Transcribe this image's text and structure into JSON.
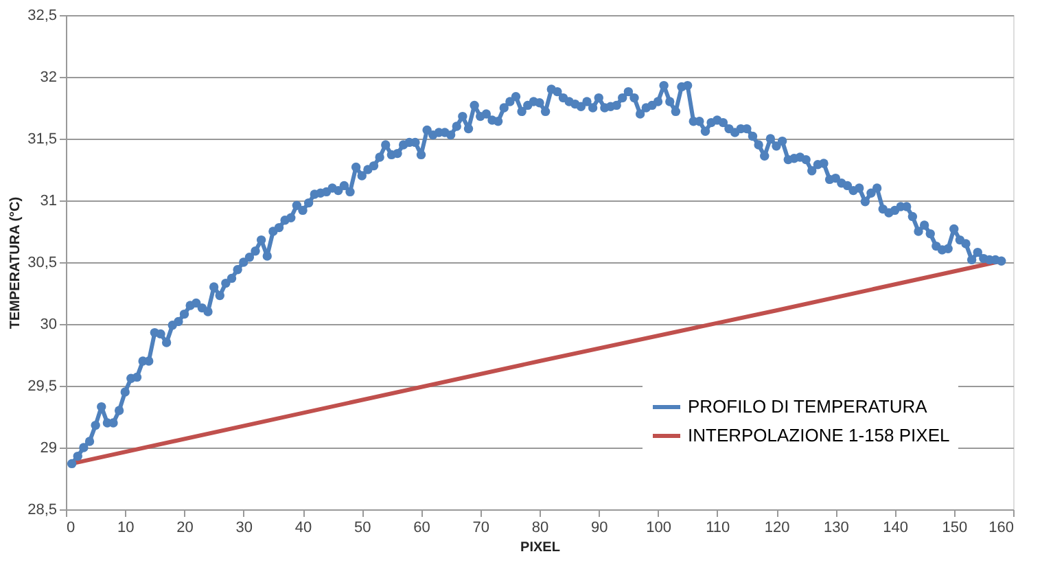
{
  "chart_data": {
    "type": "line",
    "xlabel": "PIXEL",
    "ylabel": "TEMPERATURA  (°C)",
    "xlim": [
      0,
      160
    ],
    "xticks": [
      0,
      10,
      20,
      30,
      40,
      50,
      60,
      70,
      80,
      90,
      100,
      110,
      120,
      130,
      140,
      150,
      160
    ],
    "ylim": [
      28.5,
      32.5
    ],
    "yticks": [
      {
        "value": 28.5,
        "label": "28,5"
      },
      29,
      {
        "value": 29.5,
        "label": "29,5"
      },
      30,
      {
        "value": 30.5,
        "label": "30,5"
      },
      31,
      {
        "value": 31.5,
        "label": "31,5"
      },
      32,
      {
        "value": 32.5,
        "label": "32,5"
      }
    ],
    "grid": "y",
    "legend": "bottom right",
    "line_style": "solid",
    "series": [
      {
        "name": "PROFILO DI TEMPERATURA",
        "color": "#4f81bd",
        "marker": "circle",
        "x": [
          1,
          2,
          3,
          4,
          5,
          6,
          7,
          8,
          9,
          10,
          11,
          12,
          13,
          14,
          15,
          16,
          17,
          18,
          19,
          20,
          21,
          22,
          23,
          24,
          25,
          26,
          27,
          28,
          29,
          30,
          31,
          32,
          33,
          34,
          35,
          36,
          37,
          38,
          39,
          40,
          41,
          42,
          43,
          44,
          45,
          46,
          47,
          48,
          49,
          50,
          51,
          52,
          53,
          54,
          55,
          56,
          57,
          58,
          59,
          60,
          61,
          62,
          63,
          64,
          65,
          66,
          67,
          68,
          69,
          70,
          71,
          72,
          73,
          74,
          75,
          76,
          77,
          78,
          79,
          80,
          81,
          82,
          83,
          84,
          85,
          86,
          87,
          88,
          89,
          90,
          91,
          92,
          93,
          94,
          95,
          96,
          97,
          98,
          99,
          100,
          101,
          102,
          103,
          104,
          105,
          106,
          107,
          108,
          109,
          110,
          111,
          112,
          113,
          114,
          115,
          116,
          117,
          118,
          119,
          120,
          121,
          122,
          123,
          124,
          125,
          126,
          127,
          128,
          129,
          130,
          131,
          132,
          133,
          134,
          135,
          136,
          137,
          138,
          139,
          140,
          141,
          142,
          143,
          144,
          145,
          146,
          147,
          148,
          149,
          150,
          151,
          152,
          153,
          154,
          155,
          156,
          157,
          158
        ],
        "values": [
          28.87,
          28.93,
          29.0,
          29.05,
          29.18,
          29.33,
          29.2,
          29.2,
          29.3,
          29.45,
          29.56,
          29.57,
          29.7,
          29.7,
          29.93,
          29.92,
          29.85,
          29.99,
          30.02,
          30.08,
          30.15,
          30.17,
          30.13,
          30.1,
          30.3,
          30.23,
          30.33,
          30.37,
          30.44,
          30.5,
          30.54,
          30.59,
          30.68,
          30.55,
          30.75,
          30.78,
          30.84,
          30.86,
          30.96,
          30.92,
          30.98,
          31.05,
          31.06,
          31.07,
          31.1,
          31.08,
          31.12,
          31.07,
          31.27,
          31.2,
          31.25,
          31.28,
          31.35,
          31.45,
          31.37,
          31.38,
          31.45,
          31.47,
          31.47,
          31.37,
          31.57,
          31.53,
          31.55,
          31.55,
          31.53,
          31.6,
          31.68,
          31.58,
          31.77,
          31.68,
          31.7,
          31.65,
          31.64,
          31.75,
          31.8,
          31.84,
          31.72,
          31.77,
          31.8,
          31.79,
          31.72,
          31.9,
          31.88,
          31.83,
          31.8,
          31.78,
          31.76,
          31.8,
          31.75,
          31.83,
          31.75,
          31.76,
          31.77,
          31.83,
          31.88,
          31.83,
          31.7,
          31.75,
          31.77,
          31.8,
          31.93,
          31.8,
          31.72,
          31.92,
          31.93,
          31.64,
          31.64,
          31.56,
          31.63,
          31.65,
          31.63,
          31.58,
          31.55,
          31.58,
          31.58,
          31.52,
          31.45,
          31.36,
          31.5,
          31.44,
          31.48,
          31.33,
          31.34,
          31.35,
          31.33,
          31.24,
          31.29,
          31.3,
          31.17,
          31.18,
          31.14,
          31.12,
          31.08,
          31.1,
          30.99,
          31.06,
          31.1,
          30.93,
          30.9,
          30.92,
          30.95,
          30.95,
          30.87,
          30.75,
          30.8,
          30.73,
          30.63,
          30.6,
          30.61,
          30.77,
          30.68,
          30.65,
          30.52,
          30.58,
          30.53,
          30.52,
          30.52,
          30.51
        ]
      },
      {
        "name": "INTERPOLAZIONE 1-158 PIXEL",
        "color": "#c0504d",
        "marker": "none",
        "x": [
          1,
          40,
          80,
          120,
          158
        ],
        "values": [
          28.87,
          29.28,
          29.7,
          30.11,
          30.51
        ]
      }
    ]
  }
}
